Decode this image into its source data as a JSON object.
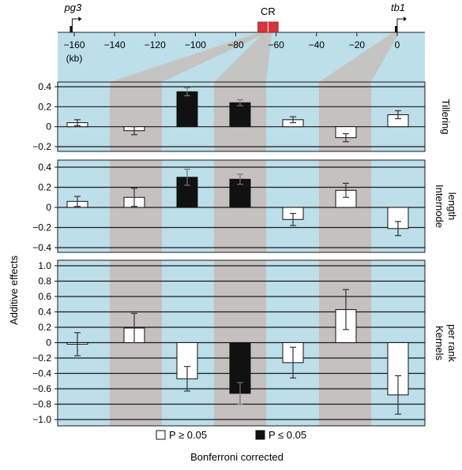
{
  "genome_track": {
    "genes": [
      {
        "name": "pg3",
        "position_kb": -161
      },
      {
        "name": "tb1",
        "position_kb": 0
      }
    ],
    "region": {
      "label": "CR",
      "start_kb": -69,
      "end_kb": -59
    },
    "axis": {
      "ticks": [
        -160,
        -140,
        -120,
        -100,
        -80,
        -60,
        -40,
        -20,
        0
      ],
      "tick_labels": [
        "−160",
        "−140",
        "−120",
        "−100",
        "−80",
        "−60",
        "−40",
        "−20",
        "0"
      ],
      "unit_label": "(kb)"
    }
  },
  "ylabel": "Additive effects",
  "legend": {
    "not_significant": "P ≥ 0.05",
    "significant": "P ≤ 0.05",
    "footnote": "Bonferroni corrected"
  },
  "colors": {
    "background": "#bcdfea",
    "shade": "#c4c1be",
    "region": "#d9343b",
    "bar_significant": "#111111",
    "bar_nonsignificant": "#ffffff"
  },
  "chart_data": [
    {
      "type": "bar",
      "trait": "Tillering",
      "trait_lines": [
        "Tillering"
      ],
      "ylim": [
        -0.2,
        0.4
      ],
      "ticks": [
        -0.2,
        0,
        0.2,
        0.4
      ],
      "tick_labels": [
        "−0.2",
        "0",
        "0.2",
        "0.4"
      ],
      "values": [
        0.04,
        -0.04,
        0.35,
        0.24,
        0.07,
        -0.11,
        0.12
      ],
      "errors": [
        0.03,
        0.04,
        0.04,
        0.03,
        0.03,
        0.04,
        0.04
      ],
      "significant": [
        false,
        false,
        true,
        true,
        false,
        false,
        false
      ]
    },
    {
      "type": "bar",
      "trait": "Internode length",
      "trait_lines": [
        "Internode",
        "length"
      ],
      "ylim": [
        -0.4,
        0.4
      ],
      "ticks": [
        -0.4,
        -0.2,
        0,
        0.2,
        0.4
      ],
      "tick_labels": [
        "−0.4",
        "−0.2",
        "0",
        "0.2",
        "0.4"
      ],
      "values": [
        0.06,
        0.1,
        0.3,
        0.28,
        -0.12,
        0.17,
        -0.21
      ],
      "errors": [
        0.05,
        0.09,
        0.08,
        0.05,
        0.06,
        0.07,
        0.07
      ],
      "significant": [
        false,
        false,
        true,
        true,
        false,
        false,
        false
      ]
    },
    {
      "type": "bar",
      "trait": "Kernels per rank",
      "trait_lines": [
        "Kernels",
        "per rank"
      ],
      "ylim": [
        -1.0,
        1.0
      ],
      "ticks": [
        -1.0,
        -0.8,
        -0.6,
        -0.4,
        -0.2,
        0,
        0.2,
        0.4,
        0.6,
        0.8,
        1.0
      ],
      "tick_labels": [
        "−1.0",
        "−0.8",
        "−0.6",
        "−0.4",
        "−0.2",
        "0",
        "0.2",
        "0.4",
        "0.6",
        "0.8",
        "1.0"
      ],
      "values": [
        -0.02,
        0.19,
        -0.47,
        -0.66,
        -0.26,
        0.43,
        -0.68
      ],
      "errors": [
        0.15,
        0.19,
        0.16,
        0.14,
        0.2,
        0.26,
        0.25
      ],
      "significant": [
        false,
        false,
        false,
        true,
        false,
        false,
        false
      ]
    }
  ]
}
